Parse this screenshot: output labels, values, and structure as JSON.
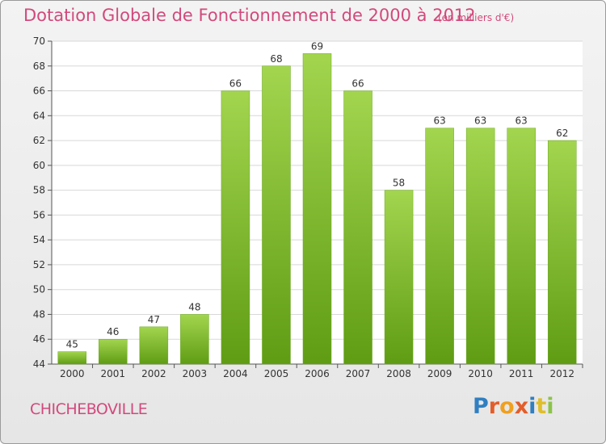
{
  "header": {
    "title": "Dotation Globale de Fonctionnement de 2000 à 2012",
    "unit": "(en milliers d'€)"
  },
  "footer": {
    "commune": "CHICHEBOVILLE",
    "logo": "Proxiti",
    "logo_colors": [
      "#2f7fc1",
      "#e35d2a",
      "#f0a020",
      "#e35d2a",
      "#2f7fc1",
      "#e0be2a",
      "#8bc34a"
    ]
  },
  "chart_data": {
    "type": "bar",
    "categories": [
      "2000",
      "2001",
      "2002",
      "2003",
      "2004",
      "2005",
      "2006",
      "2007",
      "2008",
      "2009",
      "2010",
      "2011",
      "2012"
    ],
    "values": [
      45,
      46,
      47,
      48,
      66,
      68,
      69,
      66,
      58,
      63,
      63,
      63,
      62
    ],
    "ylim": [
      44,
      70
    ],
    "yticks": [
      44,
      46,
      48,
      50,
      52,
      54,
      56,
      58,
      60,
      62,
      64,
      66,
      68,
      70
    ],
    "grid": true,
    "bar_color": "#7dbf2c"
  }
}
